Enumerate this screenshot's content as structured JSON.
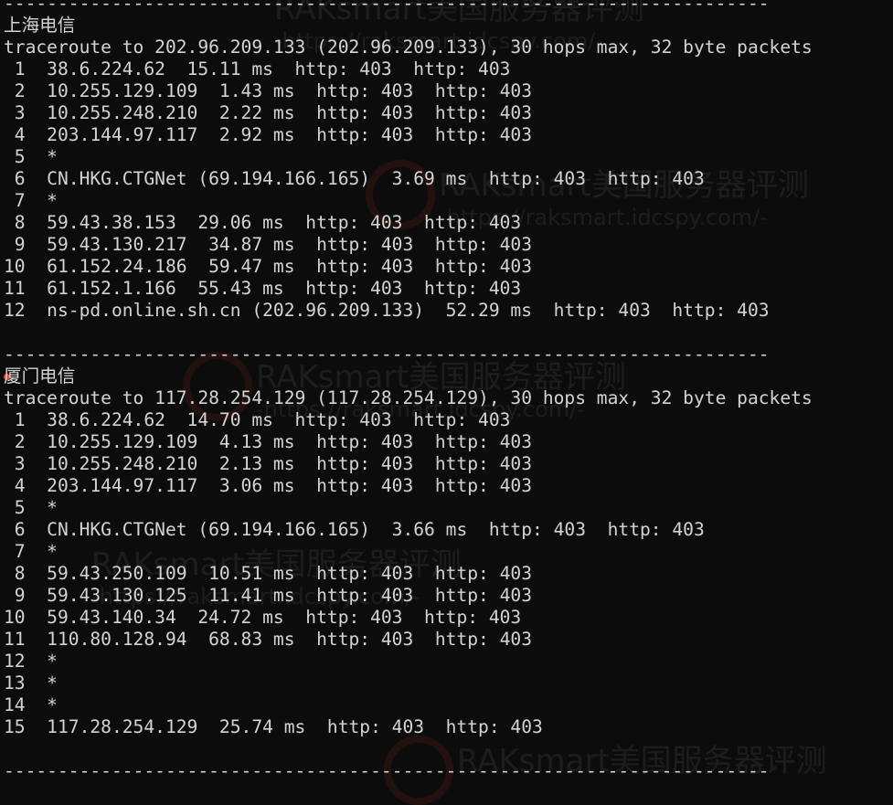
{
  "terminal": {
    "separator": "-----------------------------------------------------------------------",
    "sections": [
      {
        "title": "上海电信",
        "command": "traceroute to 202.96.209.133 (202.96.209.133), 30 hops max, 32 byte packets",
        "hops": [
          " 1  38.6.224.62  15.11 ms  http: 403  http: 403",
          " 2  10.255.129.109  1.43 ms  http: 403  http: 403",
          " 3  10.255.248.210  2.22 ms  http: 403  http: 403",
          " 4  203.144.97.117  2.92 ms  http: 403  http: 403",
          " 5  *",
          " 6  CN.HKG.CTGNet (69.194.166.165)  3.69 ms  http: 403  http: 403",
          " 7  *",
          " 8  59.43.38.153  29.06 ms  http: 403  http: 403",
          " 9  59.43.130.217  34.87 ms  http: 403  http: 403",
          "10  61.152.24.186  59.47 ms  http: 403  http: 403",
          "11  61.152.1.166  55.43 ms  http: 403  http: 403",
          "12  ns-pd.online.sh.cn (202.96.209.133)  52.29 ms  http: 403  http: 403"
        ]
      },
      {
        "title": "厦门电信",
        "command": "traceroute to 117.28.254.129 (117.28.254.129), 30 hops max, 32 byte packets",
        "hops": [
          " 1  38.6.224.62  14.70 ms  http: 403  http: 403",
          " 2  10.255.129.109  4.13 ms  http: 403  http: 403",
          " 3  10.255.248.210  2.13 ms  http: 403  http: 403",
          " 4  203.144.97.117  3.06 ms  http: 403  http: 403",
          " 5  *",
          " 6  CN.HKG.CTGNet (69.194.166.165)  3.66 ms  http: 403  http: 403",
          " 7  *",
          " 8  59.43.250.109  10.51 ms  http: 403  http: 403",
          " 9  59.43.130.125  11.41 ms  http: 403  http: 403",
          "10  59.43.140.34  24.72 ms  http: 403  http: 403",
          "11  110.80.128.94  68.83 ms  http: 403  http: 403",
          "12  *",
          "13  *",
          "14  *",
          "15  117.28.254.129  25.74 ms  http: 403  http: 403"
        ]
      }
    ]
  },
  "watermark": {
    "brand": "RAKsmart美国服务器评测",
    "url": "-https://raksmart.idcspy.com/-"
  }
}
